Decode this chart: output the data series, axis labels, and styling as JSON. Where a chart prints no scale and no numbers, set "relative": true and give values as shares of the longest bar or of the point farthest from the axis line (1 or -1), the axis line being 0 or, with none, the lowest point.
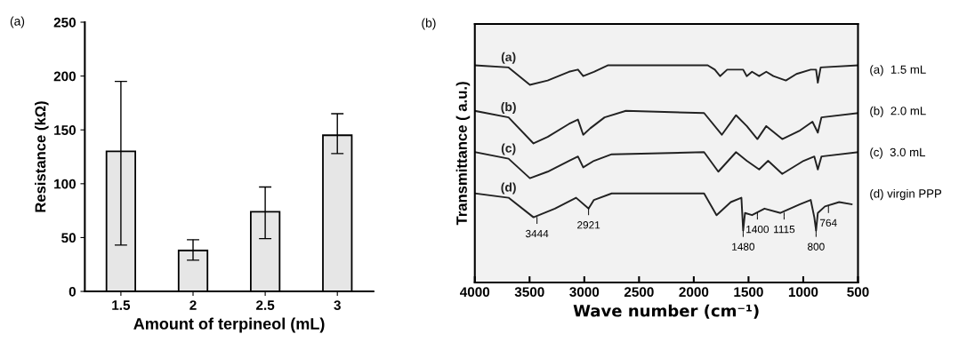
{
  "chart_data": [
    {
      "type": "bar",
      "title": "(a)",
      "xlabel": "Amount of terpineol (mL)",
      "ylabel": "Resistance (kΩ)",
      "categories": [
        "1.5",
        "2",
        "2.5",
        "3"
      ],
      "values": [
        130,
        38,
        74,
        145
      ],
      "color": "#e6e6e6",
      "errors": [
        [
          43,
          195
        ],
        [
          29,
          48
        ],
        [
          49,
          97
        ],
        [
          128,
          165
        ]
      ],
      "ylim": [
        0,
        250
      ],
      "yticks": [
        0,
        50,
        100,
        150,
        200,
        250
      ],
      "grid": false
    },
    {
      "type": "line",
      "title": "(b)",
      "xlabel": "Wave number (cm⁻¹)",
      "ylabel": "Transmittance ( a.u.)",
      "relative": true,
      "tick_labels": "x",
      "xlim": [
        4000,
        500
      ],
      "xticks": [
        4000,
        3500,
        3000,
        2500,
        2000,
        1500,
        1000,
        500
      ],
      "grid": false,
      "series": [
        {
          "name": "(a)",
          "color": "#222222",
          "x": [
            4000,
            3692,
            3497,
            3335,
            3140,
            3058,
            3010,
            2912,
            2782,
            2490,
            1873,
            1808,
            1760,
            1695,
            1614,
            1549,
            1516,
            1468,
            1403,
            1338,
            1273,
            1159,
            1062,
            932,
            883,
            867,
            841,
            500
          ],
          "values": [
            1.0,
            0.99,
            0.91,
            0.93,
            0.97,
            0.98,
            0.95,
            0.97,
            1.0,
            1.0,
            1.0,
            0.98,
            0.95,
            0.98,
            0.98,
            0.98,
            0.95,
            0.97,
            0.95,
            0.97,
            0.95,
            0.93,
            0.96,
            0.98,
            0.98,
            0.92,
            0.99,
            1.0
          ]
        },
        {
          "name": "(b)",
          "color": "#222222",
          "x": [
            4000,
            3692,
            3464,
            3335,
            3140,
            3058,
            3010,
            2945,
            2815,
            2620,
            1906,
            1744,
            1614,
            1516,
            1419,
            1338,
            1192,
            1029,
            916,
            867,
            834,
            500
          ],
          "values": [
            0.79,
            0.76,
            0.64,
            0.67,
            0.73,
            0.75,
            0.68,
            0.71,
            0.76,
            0.79,
            0.78,
            0.68,
            0.77,
            0.72,
            0.66,
            0.72,
            0.66,
            0.7,
            0.74,
            0.69,
            0.76,
            0.78
          ]
        },
        {
          "name": "(c)",
          "color": "#222222",
          "x": [
            4000,
            3692,
            3497,
            3335,
            3140,
            3058,
            3010,
            2912,
            2750,
            1906,
            1776,
            1614,
            1516,
            1403,
            1321,
            1192,
            997,
            899,
            867,
            834,
            500
          ],
          "values": [
            0.6,
            0.57,
            0.48,
            0.51,
            0.56,
            0.58,
            0.53,
            0.56,
            0.59,
            0.6,
            0.51,
            0.6,
            0.56,
            0.52,
            0.56,
            0.5,
            0.56,
            0.58,
            0.52,
            0.58,
            0.6
          ]
        },
        {
          "name": "(d)",
          "color": "#222222",
          "x": [
            4000,
            3692,
            3464,
            3269,
            3075,
            2961,
            2912,
            2750,
            1906,
            1792,
            1662,
            1565,
            1549,
            1532,
            1468,
            1354,
            1208,
            1029,
            932,
            899,
            883,
            867,
            802,
            672,
            558
          ],
          "values": [
            0.41,
            0.39,
            0.3,
            0.34,
            0.39,
            0.34,
            0.38,
            0.41,
            0.41,
            0.31,
            0.37,
            0.39,
            0.24,
            0.32,
            0.31,
            0.34,
            0.32,
            0.36,
            0.38,
            0.3,
            0.24,
            0.32,
            0.35,
            0.37,
            0.36
          ]
        }
      ],
      "annotations": [
        {
          "text": "3444",
          "x": 3432,
          "y": 0.3
        },
        {
          "text": "2921",
          "x": 2961,
          "y": 0.34
        },
        {
          "text": "1480",
          "x": 1549,
          "y": 0.24
        },
        {
          "text": "1400",
          "x": 1419,
          "y": 0.32
        },
        {
          "text": "1115",
          "x": 1175,
          "y": 0.32
        },
        {
          "text": "800",
          "x": 883,
          "y": 0.24
        },
        {
          "text": "764",
          "x": 770,
          "y": 0.35
        },
        "(a)  1.5 mL",
        "(b)  2.0 mL",
        "(c)  3.0 mL",
        "(d) virgin PPP"
      ]
    }
  ]
}
